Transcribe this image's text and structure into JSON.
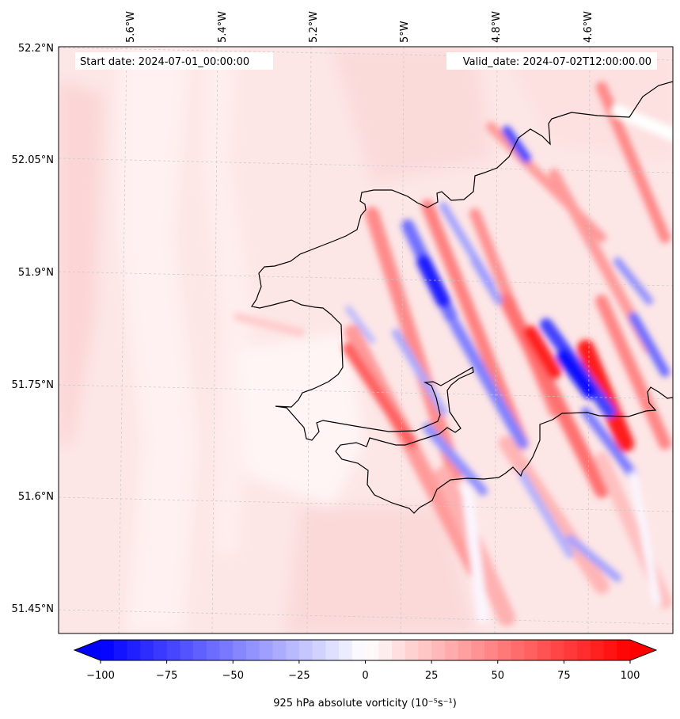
{
  "map": {
    "start_date": "Start date: 2024-07-01_00:00:00",
    "valid_date": "Valid_date: 2024-07-02T12:00:00.00",
    "lon_labels": [
      "5.6°W",
      "5.4°W",
      "5.2°W",
      "5°W",
      "4.8°W",
      "4.6°W"
    ],
    "lat_labels": [
      "52.2°N",
      "52.05°N",
      "51.9°N",
      "51.75°N",
      "51.6°N",
      "51.45°N"
    ],
    "field": "925 hPa absolute vorticity",
    "units": "(10⁻⁵s⁻¹)"
  },
  "colorbar": {
    "min": -100,
    "max": 100,
    "levels": 40,
    "tick_values": [
      -100,
      -75,
      -50,
      -25,
      0,
      25,
      50,
      75,
      100
    ],
    "tick_labels": [
      "−100",
      "−75",
      "−50",
      "−25",
      "0",
      "25",
      "50",
      "75",
      "100"
    ],
    "label": "925 hPa absolute vorticity (10⁻⁵s⁻¹)",
    "low_color": "#0000ff",
    "high_color": "#ff0000"
  },
  "colors": {
    "coastline": "#000000",
    "background_field": "#fde4e4",
    "gridline": "#c8c8c8"
  }
}
